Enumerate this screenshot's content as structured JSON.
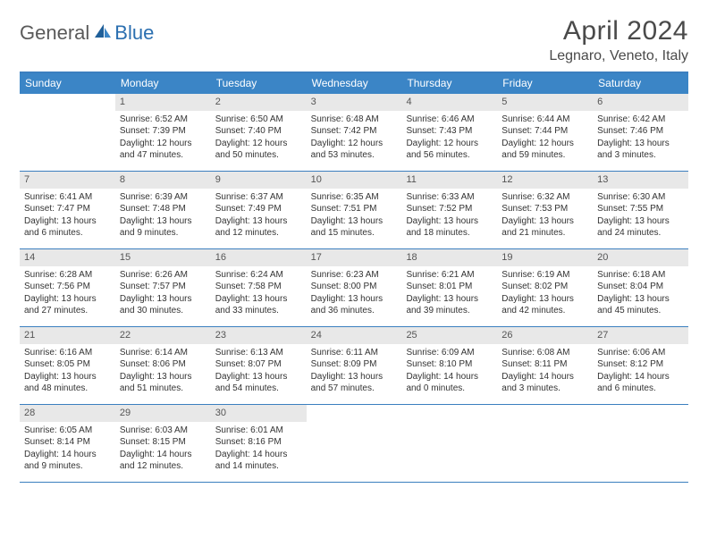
{
  "logo": {
    "text1": "General",
    "text2": "Blue"
  },
  "title": "April 2024",
  "location": "Legnaro, Veneto, Italy",
  "colors": {
    "header_bar": "#3b85c6",
    "rule": "#3b7fbf",
    "daynum_bg": "#e8e8e8",
    "text": "#333333",
    "title_text": "#4a4a4a"
  },
  "days_of_week": [
    "Sunday",
    "Monday",
    "Tuesday",
    "Wednesday",
    "Thursday",
    "Friday",
    "Saturday"
  ],
  "weeks": [
    [
      {
        "n": "",
        "empty": true
      },
      {
        "n": "1",
        "sr": "Sunrise: 6:52 AM",
        "ss": "Sunset: 7:39 PM",
        "dl": "Daylight: 12 hours and 47 minutes."
      },
      {
        "n": "2",
        "sr": "Sunrise: 6:50 AM",
        "ss": "Sunset: 7:40 PM",
        "dl": "Daylight: 12 hours and 50 minutes."
      },
      {
        "n": "3",
        "sr": "Sunrise: 6:48 AM",
        "ss": "Sunset: 7:42 PM",
        "dl": "Daylight: 12 hours and 53 minutes."
      },
      {
        "n": "4",
        "sr": "Sunrise: 6:46 AM",
        "ss": "Sunset: 7:43 PM",
        "dl": "Daylight: 12 hours and 56 minutes."
      },
      {
        "n": "5",
        "sr": "Sunrise: 6:44 AM",
        "ss": "Sunset: 7:44 PM",
        "dl": "Daylight: 12 hours and 59 minutes."
      },
      {
        "n": "6",
        "sr": "Sunrise: 6:42 AM",
        "ss": "Sunset: 7:46 PM",
        "dl": "Daylight: 13 hours and 3 minutes."
      }
    ],
    [
      {
        "n": "7",
        "sr": "Sunrise: 6:41 AM",
        "ss": "Sunset: 7:47 PM",
        "dl": "Daylight: 13 hours and 6 minutes."
      },
      {
        "n": "8",
        "sr": "Sunrise: 6:39 AM",
        "ss": "Sunset: 7:48 PM",
        "dl": "Daylight: 13 hours and 9 minutes."
      },
      {
        "n": "9",
        "sr": "Sunrise: 6:37 AM",
        "ss": "Sunset: 7:49 PM",
        "dl": "Daylight: 13 hours and 12 minutes."
      },
      {
        "n": "10",
        "sr": "Sunrise: 6:35 AM",
        "ss": "Sunset: 7:51 PM",
        "dl": "Daylight: 13 hours and 15 minutes."
      },
      {
        "n": "11",
        "sr": "Sunrise: 6:33 AM",
        "ss": "Sunset: 7:52 PM",
        "dl": "Daylight: 13 hours and 18 minutes."
      },
      {
        "n": "12",
        "sr": "Sunrise: 6:32 AM",
        "ss": "Sunset: 7:53 PM",
        "dl": "Daylight: 13 hours and 21 minutes."
      },
      {
        "n": "13",
        "sr": "Sunrise: 6:30 AM",
        "ss": "Sunset: 7:55 PM",
        "dl": "Daylight: 13 hours and 24 minutes."
      }
    ],
    [
      {
        "n": "14",
        "sr": "Sunrise: 6:28 AM",
        "ss": "Sunset: 7:56 PM",
        "dl": "Daylight: 13 hours and 27 minutes."
      },
      {
        "n": "15",
        "sr": "Sunrise: 6:26 AM",
        "ss": "Sunset: 7:57 PM",
        "dl": "Daylight: 13 hours and 30 minutes."
      },
      {
        "n": "16",
        "sr": "Sunrise: 6:24 AM",
        "ss": "Sunset: 7:58 PM",
        "dl": "Daylight: 13 hours and 33 minutes."
      },
      {
        "n": "17",
        "sr": "Sunrise: 6:23 AM",
        "ss": "Sunset: 8:00 PM",
        "dl": "Daylight: 13 hours and 36 minutes."
      },
      {
        "n": "18",
        "sr": "Sunrise: 6:21 AM",
        "ss": "Sunset: 8:01 PM",
        "dl": "Daylight: 13 hours and 39 minutes."
      },
      {
        "n": "19",
        "sr": "Sunrise: 6:19 AM",
        "ss": "Sunset: 8:02 PM",
        "dl": "Daylight: 13 hours and 42 minutes."
      },
      {
        "n": "20",
        "sr": "Sunrise: 6:18 AM",
        "ss": "Sunset: 8:04 PM",
        "dl": "Daylight: 13 hours and 45 minutes."
      }
    ],
    [
      {
        "n": "21",
        "sr": "Sunrise: 6:16 AM",
        "ss": "Sunset: 8:05 PM",
        "dl": "Daylight: 13 hours and 48 minutes."
      },
      {
        "n": "22",
        "sr": "Sunrise: 6:14 AM",
        "ss": "Sunset: 8:06 PM",
        "dl": "Daylight: 13 hours and 51 minutes."
      },
      {
        "n": "23",
        "sr": "Sunrise: 6:13 AM",
        "ss": "Sunset: 8:07 PM",
        "dl": "Daylight: 13 hours and 54 minutes."
      },
      {
        "n": "24",
        "sr": "Sunrise: 6:11 AM",
        "ss": "Sunset: 8:09 PM",
        "dl": "Daylight: 13 hours and 57 minutes."
      },
      {
        "n": "25",
        "sr": "Sunrise: 6:09 AM",
        "ss": "Sunset: 8:10 PM",
        "dl": "Daylight: 14 hours and 0 minutes."
      },
      {
        "n": "26",
        "sr": "Sunrise: 6:08 AM",
        "ss": "Sunset: 8:11 PM",
        "dl": "Daylight: 14 hours and 3 minutes."
      },
      {
        "n": "27",
        "sr": "Sunrise: 6:06 AM",
        "ss": "Sunset: 8:12 PM",
        "dl": "Daylight: 14 hours and 6 minutes."
      }
    ],
    [
      {
        "n": "28",
        "sr": "Sunrise: 6:05 AM",
        "ss": "Sunset: 8:14 PM",
        "dl": "Daylight: 14 hours and 9 minutes."
      },
      {
        "n": "29",
        "sr": "Sunrise: 6:03 AM",
        "ss": "Sunset: 8:15 PM",
        "dl": "Daylight: 14 hours and 12 minutes."
      },
      {
        "n": "30",
        "sr": "Sunrise: 6:01 AM",
        "ss": "Sunset: 8:16 PM",
        "dl": "Daylight: 14 hours and 14 minutes."
      },
      {
        "n": "",
        "empty": true
      },
      {
        "n": "",
        "empty": true
      },
      {
        "n": "",
        "empty": true
      },
      {
        "n": "",
        "empty": true
      }
    ]
  ]
}
